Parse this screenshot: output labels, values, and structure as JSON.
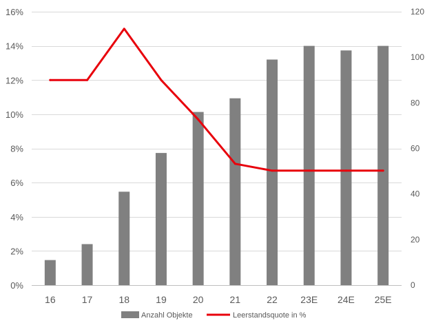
{
  "chart_data": {
    "type": "bar+line",
    "categories": [
      "16",
      "17",
      "18",
      "19",
      "20",
      "21",
      "22",
      "23E",
      "24E",
      "25E"
    ],
    "series": [
      {
        "name": "Anzahl Objekte",
        "type": "bar",
        "axis": "right",
        "color": "#808080",
        "values": [
          11,
          18,
          41,
          58,
          76,
          82,
          99,
          105,
          103,
          105
        ]
      },
      {
        "name": "Leerstandsquote in %",
        "type": "line",
        "axis": "left",
        "color": "#e8000b",
        "values": [
          12.0,
          12.0,
          15.0,
          12.0,
          9.7,
          7.1,
          6.7,
          6.7,
          6.7,
          6.7
        ]
      }
    ],
    "y_left": {
      "min": 0,
      "max": 16,
      "step": 2,
      "tick_labels": [
        "0%",
        "2%",
        "4%",
        "6%",
        "8%",
        "10%",
        "12%",
        "14%",
        "16%"
      ]
    },
    "y_right": {
      "min": 0,
      "max": 120,
      "step": 20,
      "tick_labels": [
        "0",
        "20",
        "40",
        "60",
        "80",
        "100",
        "120"
      ]
    },
    "grid": "horizontal",
    "legend": "bottom-center",
    "legend_entries": [
      "Anzahl Objekte",
      "Leerstandsquote in %"
    ]
  }
}
